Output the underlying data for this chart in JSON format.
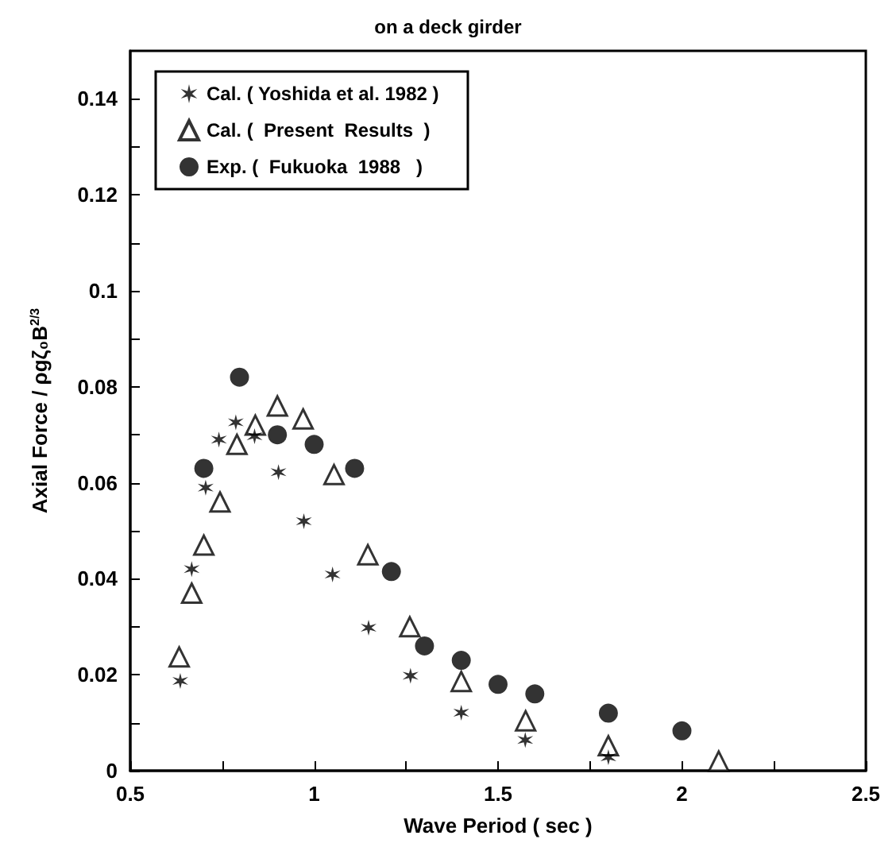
{
  "chart_data": {
    "type": "scatter",
    "title": "on a deck girder",
    "xlabel": "Wave Period ( sec )",
    "ylabel": "Axial Force / ρgζ₀B$^{2/3}$",
    "xlim": [
      0.5,
      2.5
    ],
    "xticks": [
      0.5,
      1,
      1.5,
      2,
      2.5
    ],
    "ylim": [
      0,
      0.15
    ],
    "yticks": [
      0,
      0.02,
      0.04,
      0.06,
      0.08,
      0.1,
      0.12,
      0.14
    ],
    "grid": false,
    "legend": "top left",
    "series": [
      {
        "name": "Cal. ( Yoshida et al. 1982 )",
        "color": "#000000",
        "marker": "cross",
        "x": [
          0.636,
          0.667,
          0.705,
          0.741,
          0.787,
          0.838,
          0.903,
          0.972,
          1.05,
          1.148,
          1.262,
          1.4,
          1.574,
          1.8
        ],
        "values": [
          0.0187,
          0.042,
          0.059,
          0.069,
          0.0726,
          0.0697,
          0.0622,
          0.052,
          0.0409,
          0.0298,
          0.0198,
          0.0121,
          0.0064,
          0.0028
        ]
      },
      {
        "name": "Cal. (  Present  Results  )",
        "color": "#000000",
        "marker": "triangle",
        "x": [
          0.633,
          0.667,
          0.7,
          0.744,
          0.79,
          0.84,
          0.9,
          0.97,
          1.054,
          1.146,
          1.26,
          1.4,
          1.575,
          1.8,
          2.1
        ],
        "values": [
          0.0237,
          0.037,
          0.047,
          0.056,
          0.068,
          0.072,
          0.076,
          0.0733,
          0.0617,
          0.045,
          0.03,
          0.0186,
          0.0104,
          0.0052,
          0.002
        ]
      },
      {
        "name": "Exp. (  Fukuoka  1988   )",
        "color": "#000000",
        "marker": "circle",
        "x": [
          0.7,
          0.797,
          0.9,
          1.0,
          1.11,
          1.21,
          1.3,
          1.4,
          1.5,
          1.6,
          1.8,
          2.0
        ],
        "values": [
          0.063,
          0.082,
          0.07,
          0.068,
          0.063,
          0.0415,
          0.026,
          0.023,
          0.018,
          0.016,
          0.012,
          0.0083
        ]
      }
    ]
  }
}
